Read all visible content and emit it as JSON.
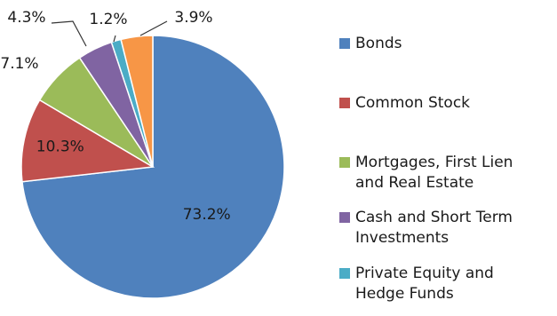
{
  "chart_data": {
    "type": "pie",
    "title": "",
    "slices": [
      {
        "label": "Bonds",
        "value": 73.2,
        "display": "73.2%",
        "color": "#4f81bd"
      },
      {
        "label": "Common Stock",
        "value": 10.3,
        "display": "10.3%",
        "color": "#c0504d"
      },
      {
        "label": "Mortgages, First Lien\nand Real Estate",
        "value": 7.1,
        "display": "7.1%",
        "color": "#9bbb59"
      },
      {
        "label": "Cash and Short Term\nInvestments",
        "value": 4.3,
        "display": "4.3%",
        "color": "#8064a2"
      },
      {
        "label": "Private Equity and\nHedge Funds",
        "value": 1.2,
        "display": "1.2%",
        "color": "#4bacc6"
      },
      {
        "label": "",
        "value": 3.9,
        "display": "3.9%",
        "color": "#f79646"
      }
    ],
    "legend_position": "right"
  }
}
